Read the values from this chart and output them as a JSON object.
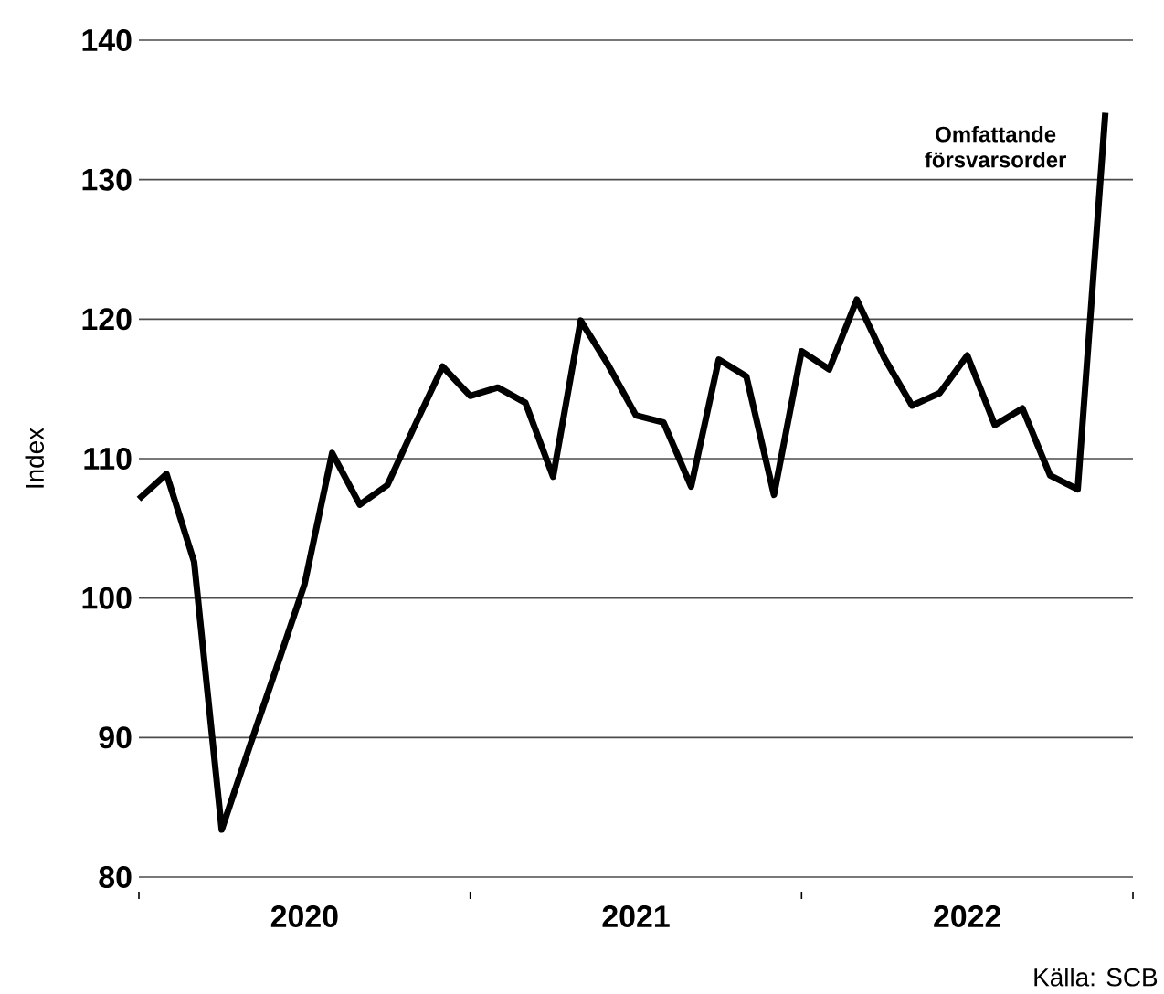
{
  "chart_data": {
    "type": "line",
    "ylabel": "Index",
    "x": [
      "2020-01",
      "2020-02",
      "2020-03",
      "2020-04",
      "2020-05",
      "2020-06",
      "2020-07",
      "2020-08",
      "2020-09",
      "2020-10",
      "2020-11",
      "2020-12",
      "2021-01",
      "2021-02",
      "2021-03",
      "2021-04",
      "2021-05",
      "2021-06",
      "2021-07",
      "2021-08",
      "2021-09",
      "2021-10",
      "2021-11",
      "2021-12",
      "2022-01",
      "2022-02",
      "2022-03",
      "2022-04",
      "2022-05",
      "2022-06",
      "2022-07",
      "2022-08",
      "2022-09",
      "2022-10",
      "2022-11",
      "2022-12"
    ],
    "series": [
      {
        "color": "#000000",
        "values": [
          107.1,
          108.9,
          102.6,
          83.4,
          89.3,
          95.1,
          101.0,
          110.4,
          106.7,
          108.1,
          112.4,
          116.6,
          114.5,
          115.1,
          114.0,
          108.7,
          119.9,
          116.7,
          113.1,
          112.6,
          108.0,
          117.1,
          115.9,
          107.4,
          117.7,
          116.4,
          121.4,
          117.2,
          113.8,
          114.7,
          117.4,
          112.4,
          113.6,
          108.8,
          107.8,
          134.8
        ]
      }
    ],
    "xlim": [
      "2020-01",
      "2023-01"
    ],
    "xticks": [
      {
        "value": "2020-01",
        "label": null
      },
      {
        "value": "2020-07",
        "label": "2020"
      },
      {
        "value": "2021-01",
        "label": null
      },
      {
        "value": "2021-07",
        "label": "2021"
      },
      {
        "value": "2022-01",
        "label": null
      },
      {
        "value": "2022-07",
        "label": "2022"
      },
      {
        "value": "2023-01",
        "label": null
      }
    ],
    "ylim": [
      80,
      140
    ],
    "yticks": [
      80,
      90,
      100,
      110,
      120,
      130,
      140
    ],
    "grid": "y",
    "annotations": [
      {
        "text": "Omfattande försvarsorder",
        "x": "2022-12",
        "y": 134.8
      },
      "Källa: SCB"
    ]
  }
}
